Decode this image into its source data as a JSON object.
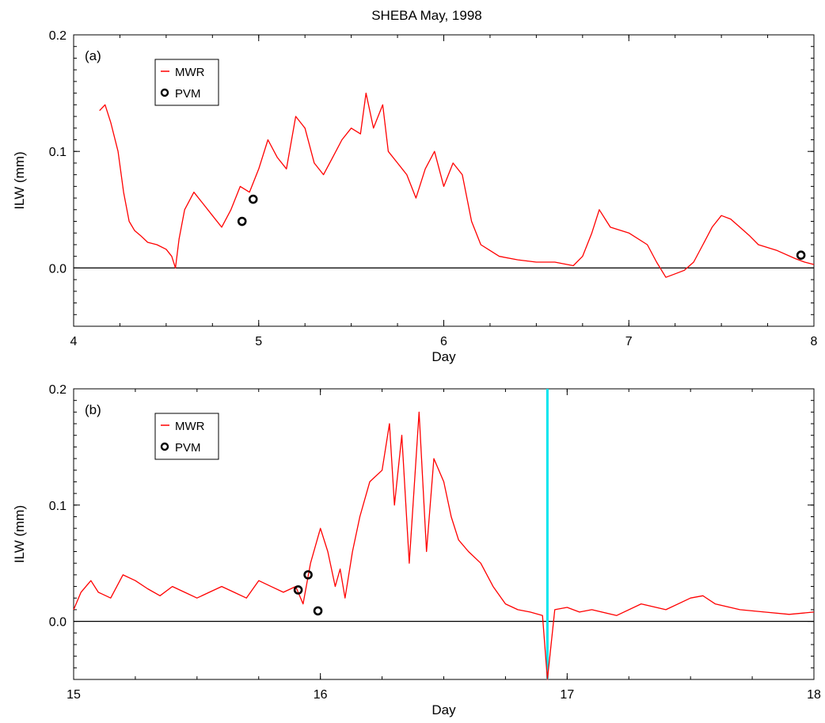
{
  "figure": {
    "title": "SHEBA  May, 1998"
  },
  "colors": {
    "mwr": "#ff0000",
    "pvm": "#000000",
    "zero_line": "#000000",
    "marker_line": "#00e5ee"
  },
  "chart_data": [
    {
      "type": "line",
      "panel_label": "(a)",
      "xlabel": "Day",
      "ylabel": "ILW (mm)",
      "xlim": [
        4,
        8
      ],
      "ylim": [
        -0.05,
        0.2
      ],
      "xticks": [
        4,
        5,
        6,
        7,
        8
      ],
      "xtick_labels": [
        "4",
        "5",
        "6",
        "7",
        "8"
      ],
      "yticks": [
        0.0,
        0.1,
        0.2
      ],
      "ytick_labels": [
        "0.0",
        "0.1",
        "0.2"
      ],
      "grid": false,
      "legend": {
        "placement": "top-left",
        "entries": [
          "MWR",
          "PVM"
        ]
      },
      "reference_lines": [
        {
          "orientation": "horizontal",
          "y": 0.0
        }
      ],
      "series": [
        {
          "name": "MWR",
          "style": "line",
          "color": "#ff0000",
          "x": [
            4.14,
            4.17,
            4.2,
            4.24,
            4.27,
            4.3,
            4.33,
            4.36,
            4.4,
            4.45,
            4.5,
            4.53,
            4.55,
            4.57,
            4.6,
            4.65,
            4.7,
            4.75,
            4.8,
            4.85,
            4.9,
            4.95,
            5.0,
            5.05,
            5.1,
            5.15,
            5.2,
            5.25,
            5.3,
            5.35,
            5.4,
            5.45,
            5.5,
            5.55,
            5.58,
            5.62,
            5.67,
            5.7,
            5.75,
            5.8,
            5.85,
            5.9,
            5.95,
            6.0,
            6.05,
            6.1,
            6.15,
            6.2,
            6.25,
            6.3,
            6.4,
            6.5,
            6.6,
            6.7,
            6.75,
            6.8,
            6.84,
            6.9,
            7.0,
            7.1,
            7.15,
            7.2,
            7.25,
            7.3,
            7.35,
            7.4,
            7.45,
            7.5,
            7.55,
            7.6,
            7.65,
            7.7,
            7.8,
            7.9,
            7.95,
            8.0
          ],
          "y": [
            0.135,
            0.14,
            0.125,
            0.1,
            0.065,
            0.04,
            0.032,
            0.028,
            0.022,
            0.02,
            0.016,
            0.01,
            0.0,
            0.025,
            0.05,
            0.065,
            0.055,
            0.045,
            0.035,
            0.05,
            0.07,
            0.065,
            0.085,
            0.11,
            0.095,
            0.085,
            0.13,
            0.12,
            0.09,
            0.08,
            0.095,
            0.11,
            0.12,
            0.115,
            0.15,
            0.12,
            0.14,
            0.1,
            0.09,
            0.08,
            0.06,
            0.085,
            0.1,
            0.07,
            0.09,
            0.08,
            0.04,
            0.02,
            0.015,
            0.01,
            0.007,
            0.005,
            0.005,
            0.002,
            0.01,
            0.03,
            0.05,
            0.035,
            0.03,
            0.02,
            0.005,
            -0.008,
            -0.005,
            -0.002,
            0.005,
            0.02,
            0.035,
            0.045,
            0.042,
            0.035,
            0.028,
            0.02,
            0.015,
            0.008,
            0.005,
            0.003
          ]
        },
        {
          "name": "PVM",
          "style": "markers",
          "color": "#000000",
          "x": [
            4.91,
            4.97,
            7.93
          ],
          "y": [
            0.04,
            0.059,
            0.011
          ]
        }
      ]
    },
    {
      "type": "line",
      "panel_label": "(b)",
      "xlabel": "Day",
      "ylabel": "ILW (mm)",
      "xlim": [
        15,
        18
      ],
      "ylim": [
        -0.05,
        0.2
      ],
      "xticks": [
        15,
        16,
        17,
        18
      ],
      "xtick_labels": [
        "15",
        "16",
        "17",
        "18"
      ],
      "yticks": [
        0.0,
        0.1,
        0.2
      ],
      "ytick_labels": [
        "0.0",
        "0.1",
        "0.2"
      ],
      "grid": false,
      "legend": {
        "placement": "top-left",
        "entries": [
          "MWR",
          "PVM"
        ]
      },
      "reference_lines": [
        {
          "orientation": "horizontal",
          "y": 0.0
        },
        {
          "orientation": "vertical",
          "x": 16.92
        }
      ],
      "series": [
        {
          "name": "MWR",
          "style": "line",
          "color": "#ff0000",
          "x": [
            15.0,
            15.03,
            15.07,
            15.1,
            15.15,
            15.2,
            15.25,
            15.3,
            15.35,
            15.4,
            15.45,
            15.5,
            15.55,
            15.6,
            15.65,
            15.7,
            15.75,
            15.8,
            15.85,
            15.9,
            15.93,
            15.96,
            16.0,
            16.03,
            16.06,
            16.08,
            16.1,
            16.13,
            16.16,
            16.2,
            16.25,
            16.28,
            16.3,
            16.33,
            16.36,
            16.4,
            16.43,
            16.46,
            16.5,
            16.53,
            16.56,
            16.6,
            16.65,
            16.7,
            16.75,
            16.8,
            16.85,
            16.9,
            16.92,
            16.95,
            17.0,
            17.05,
            17.1,
            17.2,
            17.3,
            17.4,
            17.5,
            17.55,
            17.6,
            17.7,
            17.8,
            17.9,
            18.0
          ],
          "y": [
            0.01,
            0.025,
            0.035,
            0.025,
            0.02,
            0.04,
            0.035,
            0.028,
            0.022,
            0.03,
            0.025,
            0.02,
            0.025,
            0.03,
            0.025,
            0.02,
            0.035,
            0.03,
            0.025,
            0.03,
            0.015,
            0.05,
            0.08,
            0.06,
            0.03,
            0.045,
            0.02,
            0.06,
            0.09,
            0.12,
            0.13,
            0.17,
            0.1,
            0.16,
            0.05,
            0.18,
            0.06,
            0.14,
            0.12,
            0.09,
            0.07,
            0.06,
            0.05,
            0.03,
            0.015,
            0.01,
            0.008,
            0.005,
            -0.05,
            0.01,
            0.012,
            0.008,
            0.01,
            0.005,
            0.015,
            0.01,
            0.02,
            0.022,
            0.015,
            0.01,
            0.008,
            0.006,
            0.008
          ]
        },
        {
          "name": "PVM",
          "style": "markers",
          "color": "#000000",
          "x": [
            15.91,
            15.95,
            15.99
          ],
          "y": [
            0.027,
            0.04,
            0.009
          ]
        }
      ]
    }
  ]
}
